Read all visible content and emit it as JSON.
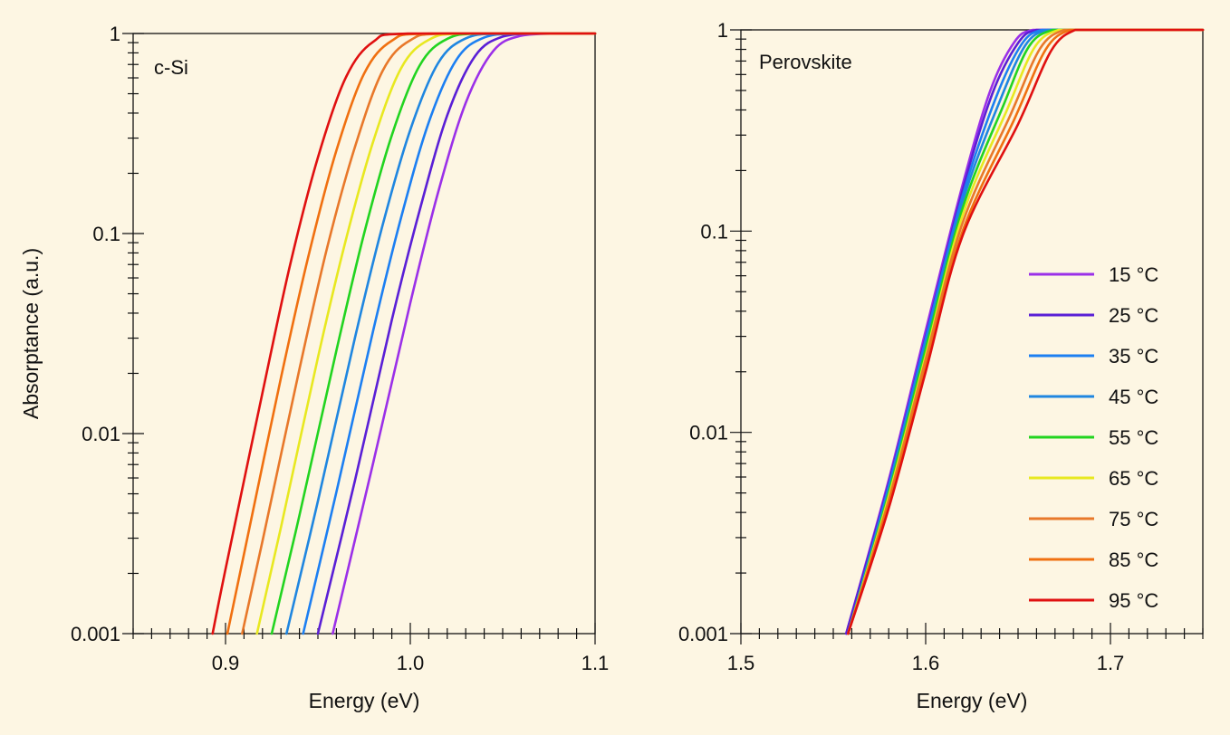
{
  "figure": {
    "background": "#fdf6e3"
  },
  "chart_data": [
    {
      "type": "line",
      "panel_label": "c-Si",
      "xlabel": "Energy (eV)",
      "ylabel": "Absorptance (a.u.)",
      "xlim": [
        0.85,
        1.1
      ],
      "ylim": [
        0.001,
        1
      ],
      "yscale": "log",
      "xticks": [
        "0.9",
        "1.0",
        "1.1"
      ],
      "yticks": [
        "0.001",
        "0.01",
        "0.1",
        "1"
      ],
      "grid": false,
      "series": [
        {
          "name": "15 °C",
          "color": "#9b30e8",
          "x": [
            0.958,
            0.98,
            1.0,
            1.015,
            1.03,
            1.045,
            1.06,
            1.08,
            1.1
          ],
          "y": [
            0.001,
            0.0072,
            0.045,
            0.16,
            0.45,
            0.82,
            0.975,
            1,
            1
          ]
        },
        {
          "name": "25 °C",
          "color": "#5a1fd6",
          "x": [
            0.95,
            0.97,
            0.99,
            1.005,
            1.02,
            1.035,
            1.05,
            1.07,
            1.1
          ],
          "y": [
            0.001,
            0.0058,
            0.037,
            0.13,
            0.39,
            0.77,
            0.965,
            1,
            1
          ]
        },
        {
          "name": "35 °C",
          "color": "#1c7ff2",
          "x": [
            0.942,
            0.96,
            0.98,
            0.995,
            1.01,
            1.025,
            1.04,
            1.06,
            1.1
          ],
          "y": [
            0.001,
            0.0051,
            0.033,
            0.12,
            0.36,
            0.74,
            0.955,
            1,
            1
          ]
        },
        {
          "name": "45 °C",
          "color": "#1f86e0",
          "x": [
            0.933,
            0.95,
            0.97,
            0.985,
            1.0,
            1.015,
            1.03,
            1.05,
            1.1
          ],
          "y": [
            0.001,
            0.0046,
            0.03,
            0.11,
            0.33,
            0.71,
            0.945,
            1,
            1
          ]
        },
        {
          "name": "55 °C",
          "color": "#22d420",
          "x": [
            0.925,
            0.94,
            0.96,
            0.975,
            0.99,
            1.005,
            1.02,
            1.04,
            1.1
          ],
          "y": [
            0.001,
            0.0039,
            0.026,
            0.1,
            0.31,
            0.69,
            0.94,
            1,
            1
          ]
        },
        {
          "name": "65 °C",
          "color": "#e8e820",
          "x": [
            0.917,
            0.93,
            0.95,
            0.965,
            0.98,
            0.995,
            1.01,
            1.03,
            1.1
          ],
          "y": [
            0.001,
            0.0034,
            0.024,
            0.092,
            0.29,
            0.67,
            0.93,
            1,
            1
          ]
        },
        {
          "name": "75 °C",
          "color": "#e8782a",
          "x": [
            0.909,
            0.92,
            0.94,
            0.955,
            0.97,
            0.985,
            1.0,
            1.02,
            1.1
          ],
          "y": [
            0.001,
            0.0029,
            0.021,
            0.085,
            0.27,
            0.65,
            0.925,
            1,
            1
          ]
        },
        {
          "name": "85 °C",
          "color": "#f07010",
          "x": [
            0.901,
            0.91,
            0.93,
            0.945,
            0.96,
            0.975,
            0.99,
            1.01,
            1.1
          ],
          "y": [
            0.001,
            0.0025,
            0.019,
            0.078,
            0.26,
            0.63,
            0.92,
            1,
            1
          ]
        },
        {
          "name": "95 °C",
          "color": "#e01010",
          "x": [
            0.893,
            0.9,
            0.92,
            0.935,
            0.95,
            0.965,
            0.98,
            1.0,
            1.1
          ],
          "y": [
            0.001,
            0.0021,
            0.016,
            0.07,
            0.24,
            0.6,
            0.91,
            1,
            1
          ]
        }
      ]
    },
    {
      "type": "line",
      "panel_label": "Perovskite",
      "xlabel": "Energy (eV)",
      "ylabel": "",
      "xlim": [
        1.5,
        1.75
      ],
      "ylim": [
        0.001,
        1
      ],
      "yscale": "log",
      "xticks": [
        "1.5",
        "1.6",
        "1.7"
      ],
      "yticks": [
        "0.001",
        "0.01",
        "0.1",
        "1"
      ],
      "grid": false,
      "legend": "right",
      "series": [
        {
          "name": "15 °C",
          "color": "#9b30e8",
          "x": [
            1.557,
            1.58,
            1.6,
            1.62,
            1.635,
            1.648,
            1.658,
            1.675,
            1.75
          ],
          "y": [
            0.001,
            0.0058,
            0.032,
            0.17,
            0.5,
            0.87,
            1,
            1,
            1
          ]
        },
        {
          "name": "25 °C",
          "color": "#5a1fd6",
          "x": [
            1.557,
            1.58,
            1.6,
            1.62,
            1.636,
            1.65,
            1.66,
            1.677,
            1.75
          ],
          "y": [
            0.001,
            0.0056,
            0.03,
            0.16,
            0.48,
            0.86,
            1,
            1,
            1
          ]
        },
        {
          "name": "35 °C",
          "color": "#1c7ff2",
          "x": [
            1.558,
            1.58,
            1.6,
            1.62,
            1.638,
            1.652,
            1.663,
            1.679,
            1.75
          ],
          "y": [
            0.001,
            0.0054,
            0.029,
            0.15,
            0.46,
            0.85,
            1,
            1,
            1
          ]
        },
        {
          "name": "45 °C",
          "color": "#1f86e0",
          "x": [
            1.558,
            1.58,
            1.6,
            1.62,
            1.64,
            1.654,
            1.666,
            1.681,
            1.75
          ],
          "y": [
            0.001,
            0.0052,
            0.027,
            0.14,
            0.44,
            0.84,
            1,
            1,
            1
          ]
        },
        {
          "name": "55 °C",
          "color": "#22d420",
          "x": [
            1.558,
            1.58,
            1.6,
            1.62,
            1.642,
            1.656,
            1.669,
            1.683,
            1.75
          ],
          "y": [
            0.001,
            0.005,
            0.026,
            0.13,
            0.42,
            0.83,
            1,
            1,
            1
          ]
        },
        {
          "name": "65 °C",
          "color": "#e8e820",
          "x": [
            1.558,
            1.58,
            1.6,
            1.62,
            1.644,
            1.659,
            1.672,
            1.685,
            1.75
          ],
          "y": [
            0.001,
            0.0048,
            0.024,
            0.12,
            0.4,
            0.82,
            1,
            1,
            1
          ]
        },
        {
          "name": "75 °C",
          "color": "#e8782a",
          "x": [
            1.558,
            1.58,
            1.6,
            1.62,
            1.646,
            1.662,
            1.675,
            1.687,
            1.75
          ],
          "y": [
            0.001,
            0.0046,
            0.023,
            0.11,
            0.38,
            0.81,
            1,
            1,
            1
          ]
        },
        {
          "name": "85 °C",
          "color": "#f07010",
          "x": [
            1.558,
            1.58,
            1.6,
            1.62,
            1.648,
            1.665,
            1.678,
            1.689,
            1.75
          ],
          "y": [
            0.001,
            0.0044,
            0.021,
            0.1,
            0.36,
            0.8,
            1,
            1,
            1
          ]
        },
        {
          "name": "95 °C",
          "color": "#e01010",
          "x": [
            1.558,
            1.58,
            1.6,
            1.62,
            1.65,
            1.668,
            1.681,
            1.691,
            1.75
          ],
          "y": [
            0.001,
            0.0042,
            0.02,
            0.095,
            0.34,
            0.79,
            1,
            1,
            1
          ]
        }
      ]
    }
  ]
}
